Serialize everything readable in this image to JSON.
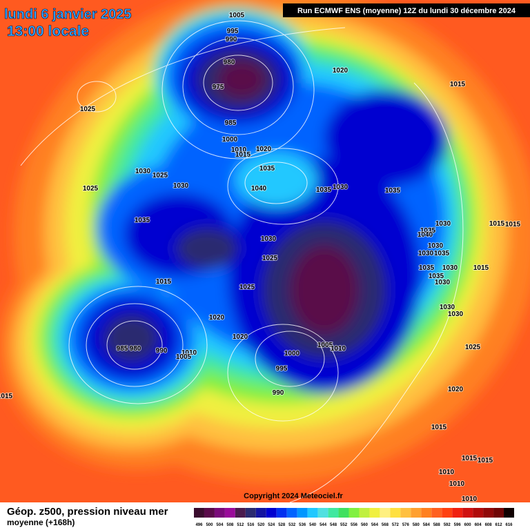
{
  "header": {
    "date": "lundi 6 janvier 2025",
    "time": "13:00 locale",
    "run": "Run ECMWF ENS (moyenne) 12Z du lundi 30 décembre 2024"
  },
  "copyright": "Copyright 2024 Meteociel.fr",
  "footer": {
    "title": "Géop. z500, pression niveau mer",
    "subtitle": "moyenne  (+168h)"
  },
  "legend": {
    "values": [
      496,
      500,
      504,
      508,
      512,
      516,
      520,
      524,
      528,
      532,
      536,
      540,
      544,
      548,
      552,
      556,
      560,
      564,
      568,
      572,
      576,
      580,
      584,
      588,
      592,
      596,
      600,
      604,
      608,
      612,
      616
    ],
    "colors": [
      "#3a0c2e",
      "#5a0a4a",
      "#7a0a7a",
      "#9a0a9a",
      "#4a1a4e",
      "#2a2a70",
      "#1414a0",
      "#0000d0",
      "#0030f0",
      "#0064ff",
      "#0096ff",
      "#20c8ff",
      "#50e0e0",
      "#40e8a0",
      "#40e060",
      "#80f040",
      "#c0f040",
      "#f0f040",
      "#fff080",
      "#ffe040",
      "#ffc040",
      "#ffa030",
      "#ff8020",
      "#ff6020",
      "#ff4010",
      "#f02010",
      "#d01010",
      "#b00a0a",
      "#900808",
      "#700505",
      "#100000"
    ]
  },
  "isobar_labels": [
    1005,
    995,
    990,
    980,
    975,
    1020,
    1025,
    1015,
    985,
    1000,
    1010,
    1015,
    1020,
    1030,
    1025,
    1030,
    1025,
    1035,
    1040,
    1035,
    1030,
    1035,
    1035,
    1030,
    1025,
    1025,
    1015,
    1020,
    1020,
    1030,
    1015,
    1015,
    1035,
    1040,
    1030,
    1030,
    1035,
    1035,
    1030,
    1015,
    1035,
    1030,
    1030,
    1030,
    1025,
    1020,
    1015,
    1015,
    1015,
    1010,
    1010,
    1010,
    985,
    980,
    990,
    1010,
    1005,
    1000,
    1005,
    1010,
    995,
    990,
    1015
  ]
}
